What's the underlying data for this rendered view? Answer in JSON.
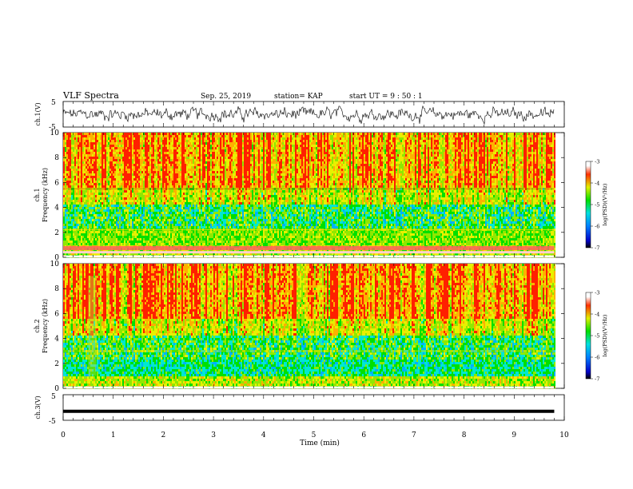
{
  "header": {
    "title": "VLF Spectra",
    "date": "Sep. 25, 2019",
    "station": "station= KAP",
    "start": "start  UT  =   9  : 50 : 1"
  },
  "chart_data": [
    {
      "type": "line",
      "panel": "ch1-waveform",
      "ylabel": "ch.1(V)",
      "ylim": [
        -5,
        5
      ],
      "yticks": [
        "5",
        "-5"
      ],
      "x_range_min": [
        0,
        9.8
      ],
      "description_values": "noisy signal centered near 0 V, amplitude roughly ±3 V"
    },
    {
      "type": "heatmap",
      "panel": "ch1-spectrogram",
      "ylabel": "ch.1\nFrequency (kHz)",
      "ylabel_lines": [
        "ch.1",
        "Frequency (kHz)"
      ],
      "ylim": [
        0,
        10
      ],
      "yticks": [
        "0",
        "2",
        "4",
        "6",
        "8",
        "10"
      ],
      "x_range_min": [
        0,
        9.8
      ],
      "colorbar": {
        "label": "log(PSD)(V²/Hz)",
        "min": -7,
        "max": -3,
        "ticks": [
          "-3",
          "-4",
          "-5",
          "-6",
          "-7"
        ]
      }
    },
    {
      "type": "heatmap",
      "panel": "ch2-spectrogram",
      "ylabel_lines": [
        "ch.2",
        "Frequency (kHz)"
      ],
      "ylim": [
        0,
        10
      ],
      "yticks": [
        "0",
        "2",
        "4",
        "6",
        "8",
        "10"
      ],
      "x_range_min": [
        0,
        9.8
      ],
      "colorbar": {
        "label": "log(PSD)(V²/Hz)",
        "min": -7,
        "max": -3,
        "ticks": [
          "-3",
          "-4",
          "-5",
          "-6",
          "-7"
        ]
      }
    },
    {
      "type": "line",
      "panel": "ch3-waveform",
      "ylabel": "ch.3(V)",
      "ylim": [
        -5,
        5
      ],
      "yticks": [
        "5",
        "-5"
      ],
      "x_range_min": [
        0,
        9.8
      ],
      "constant_value": -1.5
    }
  ],
  "xaxis": {
    "label": "Time  (min)",
    "ticks": [
      "0",
      "1",
      "2",
      "3",
      "4",
      "5",
      "6",
      "7",
      "8",
      "9",
      "10"
    ],
    "xlim": [
      0,
      10
    ]
  }
}
